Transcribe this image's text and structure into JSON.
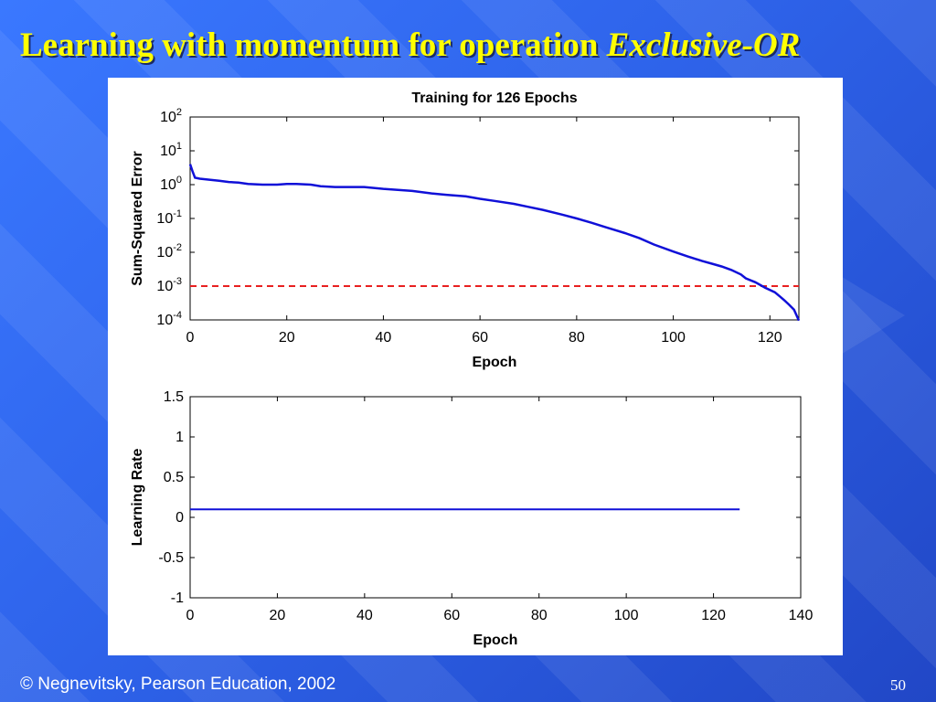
{
  "slide": {
    "title_main": "Learning with momentum for operation ",
    "title_emph": "Exclusive-OR",
    "footer": "© Negnevitsky, Pearson Education, 2002",
    "page_number": "50"
  },
  "colors": {
    "title": "#ffff00",
    "series": "#1010d8",
    "goal": "#e82020",
    "panel": "#ffffff"
  },
  "chart_data": [
    {
      "type": "line",
      "title": "Training for 126 Epochs",
      "xlabel": "Epoch",
      "ylabel": "Sum-Squared Error",
      "xlim": [
        0,
        126
      ],
      "ylim": [
        -4,
        2
      ],
      "y_scale": "log",
      "xticks": [
        "0",
        "20",
        "40",
        "60",
        "80",
        "100",
        "120"
      ],
      "yticks": [
        {
          "base": "10",
          "exp": "2"
        },
        {
          "base": "10",
          "exp": "1"
        },
        {
          "base": "10",
          "exp": "0"
        },
        {
          "base": "10",
          "exp": "-1"
        },
        {
          "base": "10",
          "exp": "-2"
        },
        {
          "base": "10",
          "exp": "-3"
        },
        {
          "base": "10",
          "exp": "-4"
        }
      ],
      "series": [
        {
          "color": "#1010d8",
          "x": [
            0,
            0.5,
            1,
            2,
            4,
            6,
            8,
            10,
            12,
            15,
            18,
            20,
            22,
            25,
            27,
            30,
            33,
            36,
            38,
            40,
            43,
            46,
            50,
            53,
            57,
            60,
            63,
            67,
            70,
            73,
            77,
            80,
            83,
            86,
            90,
            93,
            96,
            100,
            103,
            106,
            108,
            110,
            112,
            114,
            115,
            117,
            119,
            121,
            122,
            123,
            124,
            125,
            126
          ],
          "y": [
            4,
            2.5,
            1.6,
            1.5,
            1.4,
            1.3,
            1.2,
            1.15,
            1.05,
            1.0,
            1.0,
            1.05,
            1.05,
            1.0,
            0.9,
            0.85,
            0.85,
            0.85,
            0.8,
            0.75,
            0.7,
            0.65,
            0.55,
            0.5,
            0.45,
            0.38,
            0.33,
            0.27,
            0.22,
            0.18,
            0.13,
            0.1,
            0.075,
            0.055,
            0.037,
            0.026,
            0.017,
            0.0105,
            0.0075,
            0.0055,
            0.0046,
            0.0038,
            0.003,
            0.0022,
            0.0017,
            0.0013,
            0.0009,
            0.00066,
            0.0005,
            0.00038,
            0.00028,
            0.0002,
            9.5e-05
          ]
        }
      ],
      "goal": {
        "value": 0.001,
        "style": "dashed",
        "color": "#e82020"
      }
    },
    {
      "type": "line",
      "xlabel": "Epoch",
      "ylabel": "Learning Rate",
      "xlim": [
        0,
        140
      ],
      "ylim": [
        -1,
        1.5
      ],
      "xticks": [
        "0",
        "20",
        "40",
        "60",
        "80",
        "100",
        "120",
        "140"
      ],
      "yticks": [
        "1.5",
        "1",
        "0.5",
        "0",
        "-0.5",
        "-1"
      ],
      "series": [
        {
          "color": "#1010d8",
          "x": [
            0,
            126
          ],
          "y": [
            0.1,
            0.1
          ]
        }
      ]
    }
  ]
}
